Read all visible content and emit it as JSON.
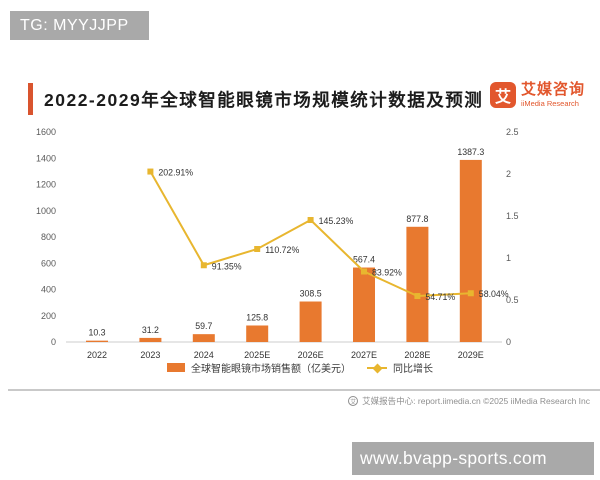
{
  "watermarks": {
    "top_left": "TG: MYYJJPP",
    "bottom_right": "www.bvapp-sports.com"
  },
  "header": {
    "logo": {
      "mark_glyph": "艾",
      "name_cn": "艾媒咨询",
      "name_en": "iiMedia Research"
    }
  },
  "footer": {
    "globe_glyph": "艾",
    "text": "艾媒报告中心: report.iimedia.cn   ©2025   iiMedia Research Inc"
  },
  "colors": {
    "bar": "#e8792f",
    "line": "#e8b62f",
    "accent_bar": "#d9542e",
    "logo_orange": "#e2572d",
    "watermark_bg": "#a9a9a9",
    "axis_text": "#5a5a5a",
    "label_text": "#333333",
    "axis_line": "#dddddd"
  },
  "chart_data": {
    "type": "bar",
    "title": "2022-2029年全球智能眼镜市场规模统计数据及预测",
    "categories": [
      "2022",
      "2023",
      "2024",
      "2025E",
      "2026E",
      "2027E",
      "2028E",
      "2029E"
    ],
    "series": [
      {
        "name": "全球智能眼镜市场销售额（亿美元）",
        "type": "bar",
        "axis": "left",
        "color": "#e8792f",
        "values": [
          10.3,
          31.2,
          59.7,
          125.8,
          308.5,
          567.4,
          877.8,
          1387.3
        ],
        "labels": [
          "10.3",
          "31.2",
          "59.7",
          "125.8",
          "308.5",
          "567.4",
          "877.8",
          "1387.3"
        ]
      },
      {
        "name": "同比增长",
        "type": "line",
        "axis": "right",
        "color": "#e8b62f",
        "values": [
          null,
          2.0291,
          0.9135,
          1.1072,
          1.4523,
          0.8392,
          0.5471,
          0.5804
        ],
        "labels": [
          null,
          "202.91%",
          "91.35%",
          "110.72%",
          "145.23%",
          "83.92%",
          "54.71%",
          "58.04%"
        ]
      }
    ],
    "left_axis": {
      "min": 0,
      "max": 1600,
      "step": 200,
      "ticks": [
        "0",
        "200",
        "400",
        "600",
        "800",
        "1000",
        "1200",
        "1400",
        "1600"
      ]
    },
    "right_axis": {
      "min": 0,
      "max": 2.5,
      "step": 0.5,
      "ticks": [
        "0",
        "0.5",
        "1",
        "1.5",
        "2",
        "2.5"
      ]
    },
    "grid": false,
    "legend_position": "bottom"
  }
}
